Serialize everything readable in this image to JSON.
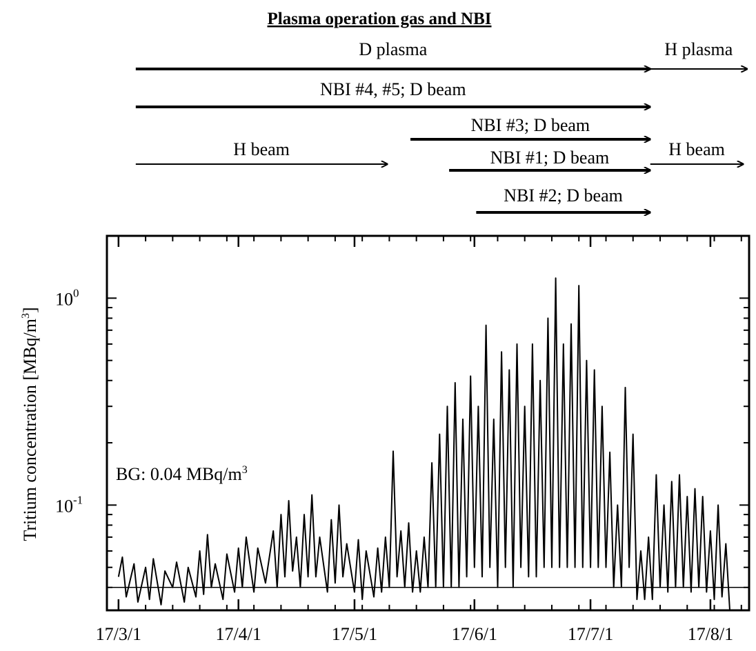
{
  "header": {
    "title": "Plasma operation gas and NBI",
    "rows": [
      {
        "name": "D plasma",
        "label": "D plasma",
        "start": "2017-03-01",
        "end": "2017-07-12",
        "weight": "bold"
      },
      {
        "name": "H plasma",
        "label": "H plasma",
        "start": "2017-07-12",
        "end": "2017-08-06",
        "weight": "normal"
      },
      {
        "name": "NBI #4, #5; D beam",
        "label": "NBI #4, #5; D beam",
        "start": "2017-03-01",
        "end": "2017-07-12",
        "weight": "bold"
      },
      {
        "name": "NBI #3; D beam",
        "label": "NBI #3; D beam",
        "start": "2017-05-11",
        "end": "2017-07-12",
        "weight": "bold"
      },
      {
        "name": "H beam (early)",
        "label": "H beam",
        "start": "2017-03-01",
        "end": "2017-05-05",
        "weight": "normal"
      },
      {
        "name": "H beam (late)",
        "label": "H beam",
        "start": "2017-07-12",
        "end": "2017-08-05",
        "weight": "normal"
      },
      {
        "name": "NBI #1; D beam",
        "label": "NBI #1; D beam",
        "start": "2017-05-21",
        "end": "2017-07-12",
        "weight": "bold"
      },
      {
        "name": "NBI #2; D beam",
        "label": "NBI #2; D beam",
        "start": "2017-05-28",
        "end": "2017-07-12",
        "weight": "bold"
      }
    ]
  },
  "chart_data": {
    "type": "line",
    "ylabel_main": "Tritium concentration [MBq/m",
    "ylabel_sup": "3",
    "ylabel_close": "]",
    "xlabel": "",
    "yscale": "log",
    "ylim": [
      0.031,
      2.0
    ],
    "xlim": [
      "2017-02-26",
      "2017-08-11"
    ],
    "x_ticks": [
      {
        "date": "2017-03-01",
        "label": "17/3/1"
      },
      {
        "date": "2017-04-01",
        "label": "17/4/1"
      },
      {
        "date": "2017-05-01",
        "label": "17/5/1"
      },
      {
        "date": "2017-06-01",
        "label": "17/6/1"
      },
      {
        "date": "2017-07-01",
        "label": "17/7/1"
      },
      {
        "date": "2017-08-01",
        "label": "17/8/1"
      }
    ],
    "y_ticks": [
      {
        "value": 1.0,
        "base": "10",
        "exp": "0"
      },
      {
        "value": 0.1,
        "base": "10",
        "exp": "-1"
      }
    ],
    "background": {
      "value": 0.04,
      "text_main": "BG: 0.04 MBq/m",
      "text_sup": "3"
    },
    "grid": false,
    "series": [
      {
        "color": "#000000",
        "points": [
          [
            "2017-03-01",
            0.045
          ],
          [
            "2017-03-02",
            0.056
          ],
          [
            "2017-03-03",
            0.036
          ],
          [
            "2017-03-05",
            0.052
          ],
          [
            "2017-03-06",
            0.034
          ],
          [
            "2017-03-08",
            0.05
          ],
          [
            "2017-03-09",
            0.035
          ],
          [
            "2017-03-10",
            0.055
          ],
          [
            "2017-03-12",
            0.033
          ],
          [
            "2017-03-13",
            0.048
          ],
          [
            "2017-03-15",
            0.04
          ],
          [
            "2017-03-16",
            0.053
          ],
          [
            "2017-03-18",
            0.034
          ],
          [
            "2017-03-19",
            0.05
          ],
          [
            "2017-03-21",
            0.036
          ],
          [
            "2017-03-22",
            0.06
          ],
          [
            "2017-03-23",
            0.037
          ],
          [
            "2017-03-24",
            0.072
          ],
          [
            "2017-03-25",
            0.04
          ],
          [
            "2017-03-26",
            0.052
          ],
          [
            "2017-03-28",
            0.035
          ],
          [
            "2017-03-29",
            0.058
          ],
          [
            "2017-03-31",
            0.038
          ],
          [
            "2017-04-01",
            0.062
          ],
          [
            "2017-04-02",
            0.04
          ],
          [
            "2017-04-03",
            0.07
          ],
          [
            "2017-04-05",
            0.038
          ],
          [
            "2017-04-06",
            0.062
          ],
          [
            "2017-04-08",
            0.042
          ],
          [
            "2017-04-10",
            0.075
          ],
          [
            "2017-04-11",
            0.04
          ],
          [
            "2017-04-12",
            0.09
          ],
          [
            "2017-04-13",
            0.045
          ],
          [
            "2017-04-14",
            0.105
          ],
          [
            "2017-04-15",
            0.048
          ],
          [
            "2017-04-16",
            0.07
          ],
          [
            "2017-04-17",
            0.04
          ],
          [
            "2017-04-18",
            0.09
          ],
          [
            "2017-04-19",
            0.045
          ],
          [
            "2017-04-20",
            0.112
          ],
          [
            "2017-04-21",
            0.045
          ],
          [
            "2017-04-22",
            0.07
          ],
          [
            "2017-04-24",
            0.038
          ],
          [
            "2017-04-25",
            0.085
          ],
          [
            "2017-04-26",
            0.042
          ],
          [
            "2017-04-27",
            0.1
          ],
          [
            "2017-04-28",
            0.045
          ],
          [
            "2017-04-29",
            0.065
          ],
          [
            "2017-05-01",
            0.038
          ],
          [
            "2017-05-02",
            0.068
          ],
          [
            "2017-05-03",
            0.035
          ],
          [
            "2017-05-04",
            0.06
          ],
          [
            "2017-05-06",
            0.036
          ],
          [
            "2017-05-07",
            0.062
          ],
          [
            "2017-05-08",
            0.038
          ],
          [
            "2017-05-09",
            0.07
          ],
          [
            "2017-05-10",
            0.04
          ],
          [
            "2017-05-11",
            0.182
          ],
          [
            "2017-05-12",
            0.045
          ],
          [
            "2017-05-13",
            0.075
          ],
          [
            "2017-05-14",
            0.04
          ],
          [
            "2017-05-15",
            0.082
          ],
          [
            "2017-05-16",
            0.038
          ],
          [
            "2017-05-17",
            0.06
          ],
          [
            "2017-05-18",
            0.038
          ],
          [
            "2017-05-19",
            0.07
          ],
          [
            "2017-05-20",
            0.04
          ],
          [
            "2017-05-21",
            0.16
          ],
          [
            "2017-05-22",
            0.04
          ],
          [
            "2017-05-23",
            0.22
          ],
          [
            "2017-05-24",
            0.04
          ],
          [
            "2017-05-25",
            0.3
          ],
          [
            "2017-05-26",
            0.04
          ],
          [
            "2017-05-27",
            0.39
          ],
          [
            "2017-05-28",
            0.04
          ],
          [
            "2017-05-29",
            0.26
          ],
          [
            "2017-05-30",
            0.045
          ],
          [
            "2017-05-31",
            0.42
          ],
          [
            "2017-06-01",
            0.05
          ],
          [
            "2017-06-02",
            0.3
          ],
          [
            "2017-06-03",
            0.045
          ],
          [
            "2017-06-04",
            0.74
          ],
          [
            "2017-06-05",
            0.05
          ],
          [
            "2017-06-06",
            0.26
          ],
          [
            "2017-06-07",
            0.04
          ],
          [
            "2017-06-08",
            0.55
          ],
          [
            "2017-06-09",
            0.05
          ],
          [
            "2017-06-10",
            0.45
          ],
          [
            "2017-06-11",
            0.04
          ],
          [
            "2017-06-12",
            0.6
          ],
          [
            "2017-06-13",
            0.05
          ],
          [
            "2017-06-14",
            0.3
          ],
          [
            "2017-06-15",
            0.045
          ],
          [
            "2017-06-16",
            0.6
          ],
          [
            "2017-06-17",
            0.045
          ],
          [
            "2017-06-18",
            0.4
          ],
          [
            "2017-06-19",
            0.05
          ],
          [
            "2017-06-20",
            0.8
          ],
          [
            "2017-06-21",
            0.05
          ],
          [
            "2017-06-22",
            1.25
          ],
          [
            "2017-06-23",
            0.05
          ],
          [
            "2017-06-24",
            0.6
          ],
          [
            "2017-06-25",
            0.05
          ],
          [
            "2017-06-26",
            0.75
          ],
          [
            "2017-06-27",
            0.05
          ],
          [
            "2017-06-28",
            1.15
          ],
          [
            "2017-06-29",
            0.05
          ],
          [
            "2017-06-30",
            0.5
          ],
          [
            "2017-07-01",
            0.05
          ],
          [
            "2017-07-02",
            0.45
          ],
          [
            "2017-07-03",
            0.05
          ],
          [
            "2017-07-04",
            0.3
          ],
          [
            "2017-07-05",
            0.05
          ],
          [
            "2017-07-06",
            0.18
          ],
          [
            "2017-07-07",
            0.04
          ],
          [
            "2017-07-08",
            0.1
          ],
          [
            "2017-07-09",
            0.04
          ],
          [
            "2017-07-10",
            0.37
          ],
          [
            "2017-07-11",
            0.05
          ],
          [
            "2017-07-12",
            0.22
          ],
          [
            "2017-07-13",
            0.035
          ],
          [
            "2017-07-14",
            0.06
          ],
          [
            "2017-07-15",
            0.035
          ],
          [
            "2017-07-16",
            0.07
          ],
          [
            "2017-07-17",
            0.035
          ],
          [
            "2017-07-18",
            0.14
          ],
          [
            "2017-07-19",
            0.04
          ],
          [
            "2017-07-20",
            0.1
          ],
          [
            "2017-07-21",
            0.038
          ],
          [
            "2017-07-22",
            0.13
          ],
          [
            "2017-07-23",
            0.04
          ],
          [
            "2017-07-24",
            0.14
          ],
          [
            "2017-07-25",
            0.04
          ],
          [
            "2017-07-26",
            0.11
          ],
          [
            "2017-07-27",
            0.038
          ],
          [
            "2017-07-28",
            0.12
          ],
          [
            "2017-07-29",
            0.04
          ],
          [
            "2017-07-30",
            0.11
          ],
          [
            "2017-07-31",
            0.038
          ],
          [
            "2017-08-01",
            0.075
          ],
          [
            "2017-08-02",
            0.035
          ],
          [
            "2017-08-03",
            0.1
          ],
          [
            "2017-08-04",
            0.036
          ],
          [
            "2017-08-05",
            0.065
          ],
          [
            "2017-08-06",
            0.03
          ]
        ]
      }
    ]
  }
}
